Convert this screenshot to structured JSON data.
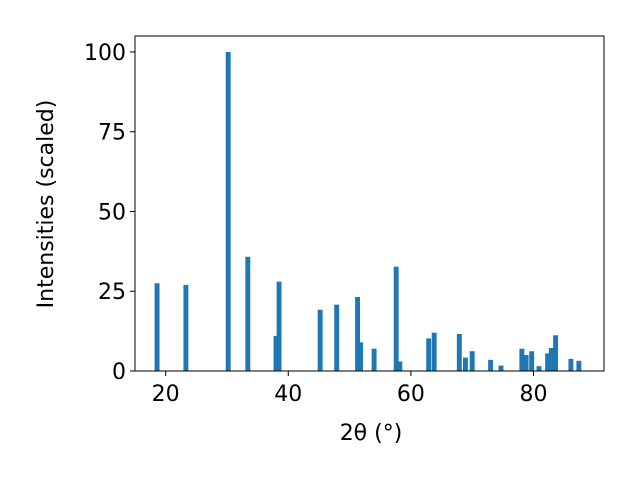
{
  "chart_data": {
    "type": "bar",
    "title": "",
    "xlabel": "2θ (°)",
    "ylabel": "Intensities (scaled)",
    "xlim": [
      15,
      91.5
    ],
    "ylim": [
      0,
      105
    ],
    "xticks": [
      20,
      40,
      60,
      80
    ],
    "yticks": [
      0,
      25,
      50,
      75,
      100
    ],
    "grid": false,
    "bar_color": "#1f77b4",
    "bar_width": 0.8,
    "x": [
      18.6,
      23.3,
      30.2,
      33.4,
      38.0,
      38.5,
      45.2,
      47.9,
      51.3,
      51.8,
      54.0,
      57.6,
      58.2,
      62.9,
      63.8,
      67.9,
      68.9,
      70.0,
      73.0,
      74.7,
      78.1,
      78.8,
      79.7,
      80.9,
      82.3,
      82.9,
      83.6,
      86.1,
      87.4
    ],
    "values": [
      27.5,
      27.0,
      100.0,
      35.8,
      11.0,
      28.0,
      19.2,
      20.8,
      23.2,
      9.0,
      7.0,
      32.7,
      3.0,
      10.2,
      12.0,
      11.6,
      4.2,
      6.2,
      3.5,
      1.7,
      7.0,
      5.0,
      6.2,
      1.5,
      5.5,
      7.2,
      11.2,
      3.8,
      3.2
    ]
  }
}
